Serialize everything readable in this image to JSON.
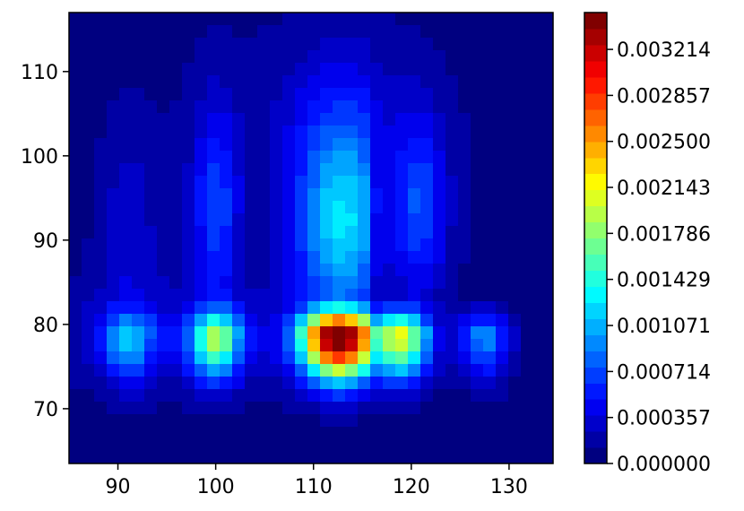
{
  "chart_data": {
    "type": "heatmap",
    "title": "",
    "xlabel": "",
    "ylabel": "",
    "xlim": [
      85,
      134.5
    ],
    "ylim": [
      63.5,
      117
    ],
    "x_ticks": [
      {
        "value": 90,
        "label": "90"
      },
      {
        "value": 100,
        "label": "100"
      },
      {
        "value": 110,
        "label": "110"
      },
      {
        "value": 120,
        "label": "120"
      },
      {
        "value": 130,
        "label": "130"
      }
    ],
    "y_ticks": [
      {
        "value": 70,
        "label": "70"
      },
      {
        "value": 80,
        "label": "80"
      },
      {
        "value": 90,
        "label": "90"
      },
      {
        "value": 100,
        "label": "100"
      },
      {
        "value": 110,
        "label": "110"
      }
    ],
    "colorbar": {
      "colormap": "jet",
      "vmin": 0.0,
      "vmax": 0.0035,
      "ticks": [
        {
          "value": 0.0,
          "label": "0.000000"
        },
        {
          "value": 0.000357,
          "label": "0.000357"
        },
        {
          "value": 0.000714,
          "label": "0.000714"
        },
        {
          "value": 0.001071,
          "label": "0.001071"
        },
        {
          "value": 0.001429,
          "label": "0.001429"
        },
        {
          "value": 0.001786,
          "label": "0.001786"
        },
        {
          "value": 0.002143,
          "label": "0.002143"
        },
        {
          "value": 0.0025,
          "label": "0.002500"
        },
        {
          "value": 0.002857,
          "label": "0.002857"
        },
        {
          "value": 0.003214,
          "label": "0.003214"
        }
      ]
    },
    "density_peaks": [
      {
        "x": 91,
        "y": 78.5,
        "value": 0.0008
      },
      {
        "x": 100,
        "y": 78,
        "value": 0.0015
      },
      {
        "x": 112.5,
        "y": 78.5,
        "value": 0.0034
      },
      {
        "x": 119,
        "y": 78.5,
        "value": 0.0019
      },
      {
        "x": 127.5,
        "y": 78.5,
        "value": 0.0009
      },
      {
        "x": 113,
        "y": 93,
        "value": 0.0011
      },
      {
        "x": 100,
        "y": 93,
        "value": 0.0006
      },
      {
        "x": 121,
        "y": 93,
        "value": 0.0006
      },
      {
        "x": 91,
        "y": 90,
        "value": 0.0003
      },
      {
        "x": 112,
        "y": 108,
        "value": 0.0003
      }
    ],
    "grid": false
  }
}
